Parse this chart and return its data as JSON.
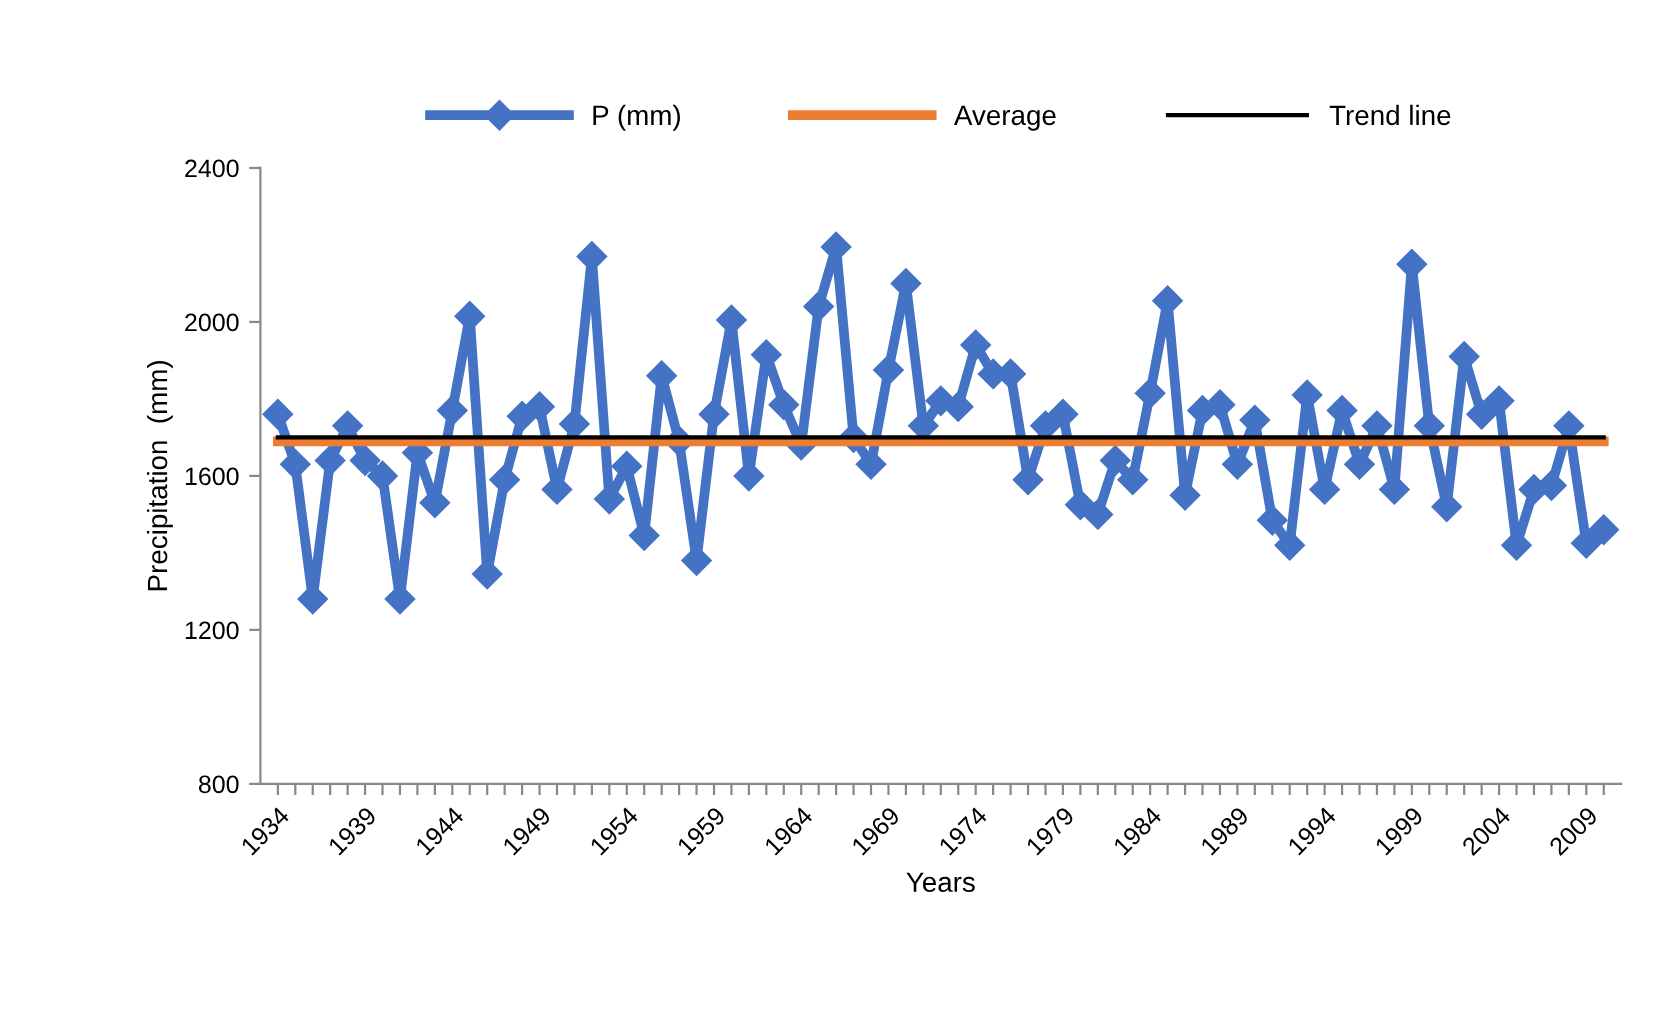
{
  "chart_data": {
    "type": "line",
    "xlabel": "Years",
    "ylabel": "Precipitation  (mm)",
    "categories": [
      "1934",
      null,
      null,
      null,
      null,
      "1939",
      null,
      null,
      null,
      null,
      "1944",
      null,
      null,
      null,
      null,
      "1949",
      null,
      null,
      null,
      null,
      "1954",
      null,
      null,
      null,
      null,
      "1959",
      null,
      null,
      null,
      null,
      "1964",
      null,
      null,
      null,
      null,
      "1969",
      null,
      null,
      null,
      null,
      "1974",
      null,
      null,
      null,
      null,
      "1979",
      null,
      null,
      null,
      null,
      "1984",
      null,
      null,
      null,
      null,
      "1989",
      null,
      null,
      null,
      null,
      "1994",
      null,
      null,
      null,
      null,
      "1999",
      null,
      null,
      null,
      null,
      "2004",
      null,
      null,
      null,
      null,
      "2009",
      null
    ],
    "series": [
      {
        "name": "P (mm)",
        "color": "#4472c4",
        "marker": "diamond",
        "values": [
          1760,
          1630,
          1280,
          1640,
          1730,
          1640,
          1600,
          1280,
          1660,
          1530,
          1770,
          2015,
          1345,
          1590,
          1755,
          1780,
          1565,
          1735,
          2170,
          1540,
          1625,
          1445,
          1860,
          1690,
          1380,
          1760,
          2005,
          1600,
          1915,
          1785,
          1680,
          2040,
          2195,
          1700,
          1630,
          1875,
          2100,
          1730,
          1795,
          1780,
          1940,
          1865,
          1865,
          1590,
          1730,
          1760,
          1525,
          1500,
          1640,
          1590,
          1815,
          2055,
          1550,
          1770,
          1785,
          1630,
          1745,
          1485,
          1420,
          1810,
          1565,
          1770,
          1630,
          1730,
          1565,
          2150,
          1730,
          1520,
          1910,
          1760,
          1795,
          1420,
          1565,
          1575,
          1730,
          1425,
          1460
        ]
      },
      {
        "name": "Average",
        "color": "#ed7d31",
        "marker": "none",
        "values": [
          1690,
          1690,
          1690,
          1690,
          1690,
          1690,
          1690,
          1690,
          1690,
          1690,
          1690,
          1690,
          1690,
          1690,
          1690,
          1690,
          1690,
          1690,
          1690,
          1690,
          1690,
          1690,
          1690,
          1690,
          1690,
          1690,
          1690,
          1690,
          1690,
          1690,
          1690,
          1690,
          1690,
          1690,
          1690,
          1690,
          1690,
          1690,
          1690,
          1690,
          1690,
          1690,
          1690,
          1690,
          1690,
          1690,
          1690,
          1690,
          1690,
          1690,
          1690,
          1690,
          1690,
          1690,
          1690,
          1690,
          1690,
          1690,
          1690,
          1690,
          1690,
          1690,
          1690,
          1690,
          1690,
          1690,
          1690,
          1690,
          1690,
          1690,
          1690,
          1690,
          1690,
          1690,
          1690,
          1690,
          1690
        ]
      },
      {
        "name": "Trend line",
        "color": "#000000",
        "marker": "none",
        "values": [
          1700,
          1700,
          1700,
          1700,
          1700,
          1700,
          1700,
          1700,
          1700,
          1700,
          1700,
          1700,
          1700,
          1700,
          1700,
          1700,
          1700,
          1700,
          1700,
          1700,
          1700,
          1700,
          1700,
          1700,
          1700,
          1700,
          1700,
          1700,
          1700,
          1700,
          1700,
          1700,
          1700,
          1700,
          1700,
          1700,
          1700,
          1700,
          1700,
          1700,
          1700,
          1700,
          1700,
          1700,
          1700,
          1700,
          1700,
          1700,
          1700,
          1700,
          1700,
          1700,
          1700,
          1700,
          1700,
          1700,
          1700,
          1700,
          1700,
          1700,
          1700,
          1700,
          1700,
          1700,
          1700,
          1700,
          1700,
          1700,
          1700,
          1700,
          1700,
          1700,
          1700,
          1700,
          1700,
          1700,
          1700
        ]
      }
    ],
    "ylim": [
      800,
      2400
    ],
    "yticks": [
      800,
      1200,
      1600,
      2000,
      2400
    ],
    "grid": false,
    "legend": "top",
    "line_style": "solid"
  }
}
